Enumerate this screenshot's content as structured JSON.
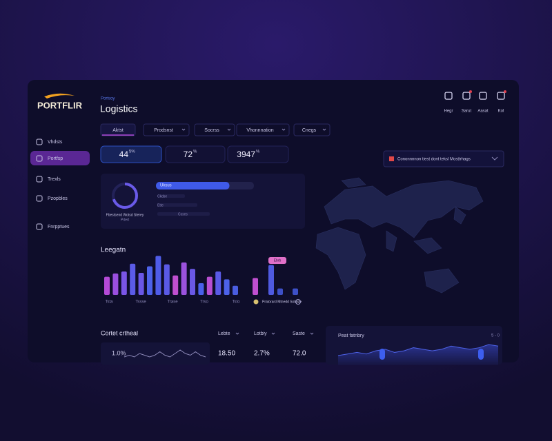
{
  "brand": "PORTFLIR",
  "header": {
    "kicker": "Portsoy",
    "title": "Logistics"
  },
  "top_icons": [
    "Hegr",
    "Sarut",
    "Aasat",
    "Kol"
  ],
  "nav": [
    "Vhdsts",
    "Portfsp",
    "Trexls",
    "Pzopbles",
    "Fnrpptues"
  ],
  "active_nav": 1,
  "tabs": [
    "Aktst",
    "Prodsnst",
    "Socrss",
    "Vhonnnation",
    "Cnegs"
  ],
  "kpis": [
    {
      "value": "44",
      "sup": "5%"
    },
    {
      "value": "72",
      "sup": "%"
    },
    {
      "value": "3947",
      "sup": "%"
    }
  ],
  "map_dropdown": "Cononnnnon tiest dont teksl Mosttrhags",
  "summary": {
    "donut": 70,
    "donut_caption": "Fbestsend Wotsd Sterey",
    "donut_sub": "Prtert",
    "progress_label": "Uksus",
    "progress": 75,
    "items": [
      "Ckdse",
      "Ette",
      "Csses"
    ]
  },
  "chart": {
    "title": "Leegatn",
    "badge": "Ebrb",
    "legend": "Pratorard Mtnedd Sotasle",
    "ylim": [
      0,
      70
    ],
    "values": [
      28,
      33,
      36,
      48,
      34,
      44,
      60,
      47,
      30,
      50,
      40,
      18,
      28,
      36,
      24,
      14,
      26,
      46,
      10,
      10
    ],
    "colors": [
      "#b44ad6",
      "#9a4fe0",
      "#7a55e6",
      "#5b5be8",
      "#6a57e6",
      "#4d62ea",
      "#4f5ce8",
      "#5a5ae6",
      "#c04fd0",
      "#9b52de",
      "#6a58e6",
      "#4a60ea",
      "#b84ed2",
      "#5a5ae6",
      "#4d62ea",
      "#4a5de0",
      "#c04fd0",
      "#4f5ae0",
      "#3d50c8",
      "#3d50c8"
    ],
    "x_labels": [
      "Tsta",
      "Tssse",
      "Trase",
      "Trso",
      "Tsto"
    ]
  },
  "bottom": {
    "title": "Cortet crtheal",
    "columns": [
      "Lebte",
      "Lotbiy",
      "Saste"
    ],
    "card_value": "1.0%",
    "metrics": [
      "18.50",
      "2.7%",
      "72.0"
    ],
    "spark": [
      5,
      6,
      5,
      7,
      6,
      5,
      6,
      8,
      6,
      5,
      7,
      9,
      7,
      6,
      8,
      6,
      5
    ]
  },
  "right_card": {
    "title": "Peat fatnbry",
    "range": "5 - 0",
    "spark": [
      4,
      5,
      6,
      5,
      7,
      8,
      6,
      7,
      9,
      8,
      7,
      8,
      10,
      9,
      8,
      9,
      11,
      10
    ]
  }
}
